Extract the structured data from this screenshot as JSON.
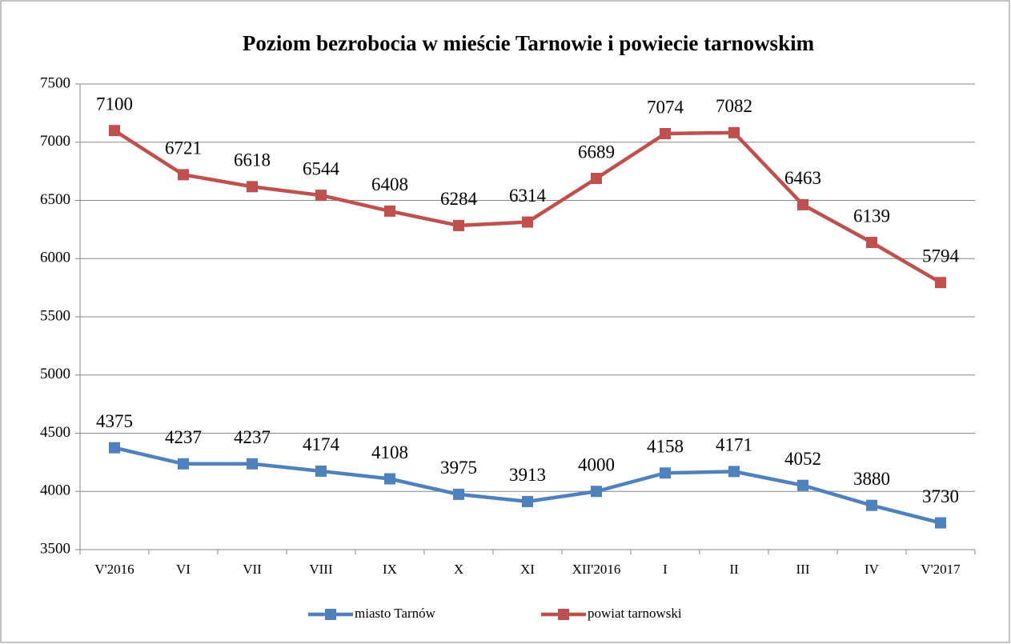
{
  "chart_data": {
    "type": "line",
    "title": "Poziom bezrobocia w mieście Tarnowie i powiecie tarnowskim",
    "categories": [
      "V'2016",
      "VI",
      "VII",
      "VIII",
      "IX",
      "X",
      "XI",
      "XII'2016",
      "I",
      "II",
      "III",
      "IV",
      "V'2017"
    ],
    "series": [
      {
        "name": "miasto Tarnów",
        "color": "#4f81bd",
        "values": [
          4375,
          4237,
          4237,
          4174,
          4108,
          3975,
          3913,
          4000,
          4158,
          4171,
          4052,
          3880,
          3730
        ]
      },
      {
        "name": "powiat tarnowski",
        "color": "#c0504d",
        "values": [
          7100,
          6721,
          6618,
          6544,
          6408,
          6284,
          6314,
          6689,
          7074,
          7082,
          6463,
          6139,
          5794
        ]
      }
    ],
    "ylim": [
      3500,
      7500
    ],
    "yticks": [
      3500,
      4000,
      4500,
      5000,
      5500,
      6000,
      6500,
      7000,
      7500
    ],
    "grid": true,
    "legend": "bottom"
  }
}
